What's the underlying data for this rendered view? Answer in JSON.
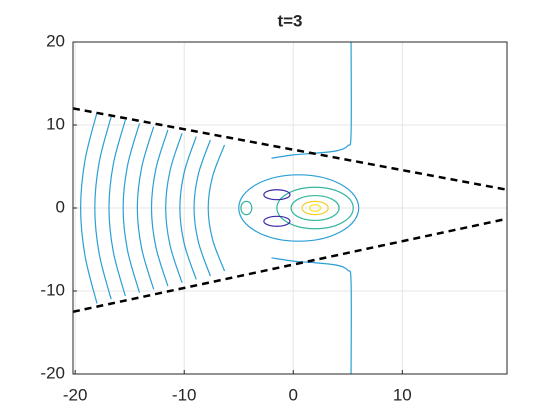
{
  "chart_data": {
    "type": "contour",
    "title": "t=3",
    "xlim": [
      -20.2,
      19.6
    ],
    "ylim": [
      -20,
      20
    ],
    "xticks": [
      -20,
      -10,
      0,
      10
    ],
    "yticks": [
      -20,
      -10,
      0,
      10,
      20
    ],
    "grid": true,
    "series": [
      {
        "color": "#2a9fd6",
        "x": [
          -18,
          -19.1,
          -19.5,
          -19.1,
          -18
        ],
        "y": [
          -11.5,
          -5.75,
          0,
          5.75,
          11.5
        ]
      },
      {
        "color": "#2a9fd6",
        "x": [
          -16.7,
          -17.8,
          -18.2,
          -17.8,
          -16.7
        ],
        "y": [
          -11,
          -5.5,
          0,
          5.5,
          11
        ]
      },
      {
        "color": "#2a9fd6",
        "x": [
          -15.4,
          -16.5,
          -16.9,
          -16.5,
          -15.4
        ],
        "y": [
          -10.6,
          -5.3,
          0,
          5.3,
          10.6
        ]
      },
      {
        "color": "#2a9fd6",
        "x": [
          -14.1,
          -15.2,
          -15.6,
          -15.2,
          -14.1
        ],
        "y": [
          -10.2,
          -5.1,
          0,
          5.1,
          10.2
        ]
      },
      {
        "color": "#2a9fd6",
        "x": [
          -12.8,
          -13.9,
          -14.3,
          -13.9,
          -12.8
        ],
        "y": [
          -9.8,
          -4.9,
          0,
          4.9,
          9.8
        ]
      },
      {
        "color": "#2a9fd6",
        "x": [
          -11.5,
          -12.6,
          -13,
          -12.6,
          -11.5
        ],
        "y": [
          -9.4,
          -4.7,
          0,
          4.7,
          9.4
        ]
      },
      {
        "color": "#2a9fd6",
        "x": [
          -10.2,
          -11.3,
          -11.7,
          -11.3,
          -10.2
        ],
        "y": [
          -9,
          -4.5,
          0,
          4.5,
          9
        ]
      },
      {
        "color": "#2a9fd6",
        "x": [
          -8.9,
          -10,
          -10.4,
          -10,
          -8.9
        ],
        "y": [
          -8.6,
          -4.3,
          0,
          4.3,
          8.6
        ]
      },
      {
        "color": "#2a9fd6",
        "x": [
          -7.6,
          -8.7,
          -9.1,
          -8.7,
          -7.6
        ],
        "y": [
          -8.2,
          -4.1,
          0,
          4.1,
          8.2
        ]
      },
      {
        "color": "#2a9fd6",
        "x": [
          -6.3,
          -7.4,
          -7.8,
          -7.4,
          -6.3
        ],
        "y": [
          -7.6,
          -3.8,
          0,
          3.8,
          7.6
        ]
      },
      {
        "color": "#2a9fd6",
        "x": [
          5.3,
          5.3,
          5.0,
          4,
          2,
          0,
          -2
        ],
        "y": [
          20,
          9,
          7.5,
          6.9,
          6.6,
          6.4,
          6
        ]
      },
      {
        "color": "#2a9fd6",
        "x": [
          -2,
          0,
          2,
          4,
          5.0,
          5.3,
          5.3
        ],
        "y": [
          -6,
          -6.4,
          -6.6,
          -6.9,
          -7.5,
          -9,
          -20
        ]
      },
      {
        "color": "#000000",
        "dash": true,
        "x": [
          -20.2,
          19.6
        ],
        "y": [
          12,
          2.2
        ]
      },
      {
        "color": "#000000",
        "dash": true,
        "x": [
          -20.2,
          19.6
        ],
        "y": [
          -12.5,
          -1.3
        ]
      }
    ],
    "ellipses": [
      {
        "color": "#2a9fd6",
        "cx": 0.5,
        "cy": 0,
        "rx": 5.5,
        "ry": 4
      },
      {
        "color": "#33b7a0",
        "cx": 2,
        "cy": 0,
        "rx": 3.5,
        "ry": 2.5
      },
      {
        "color": "#33b7a0",
        "cx": 2,
        "cy": 0,
        "rx": 2.2,
        "ry": 1.5
      },
      {
        "color": "#f2cf2b",
        "cx": 2,
        "cy": 0,
        "rx": 1.2,
        "ry": 0.8
      },
      {
        "color": "#f9e21e",
        "cx": 2,
        "cy": 0,
        "rx": 0.5,
        "ry": 0.4
      },
      {
        "color": "#3e26a8",
        "cx": -1.5,
        "cy": 1.6,
        "rx": 1.2,
        "ry": 0.6
      },
      {
        "color": "#3e26a8",
        "cx": -1.5,
        "cy": -1.6,
        "rx": 1.2,
        "ry": 0.6
      },
      {
        "color": "#33b7a0",
        "cx": -4.3,
        "cy": 0,
        "rx": 0.5,
        "ry": 0.8
      }
    ]
  }
}
